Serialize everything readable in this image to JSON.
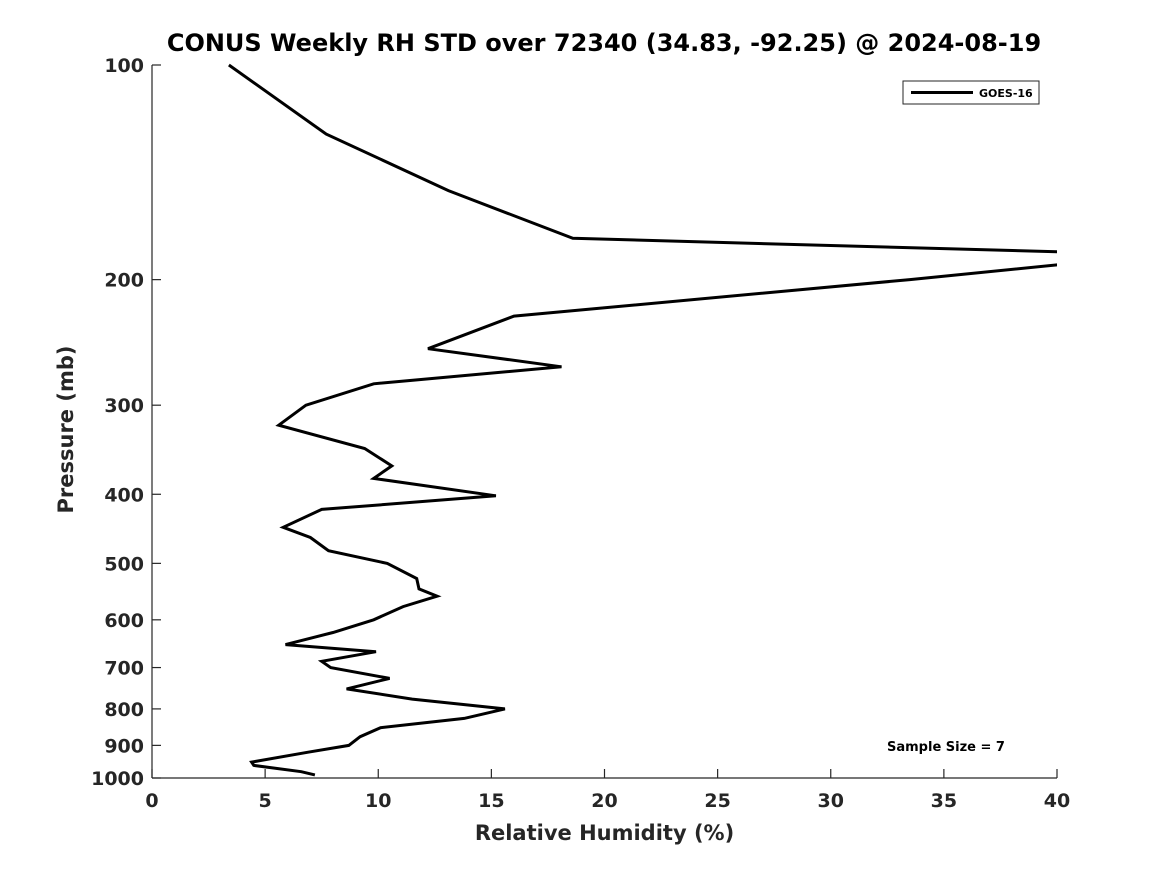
{
  "chart_data": {
    "type": "line",
    "title": "CONUS Weekly RH STD over 72340 (34.83, -92.25) @ 2024-08-19",
    "xlabel": "Relative Humidity (%)",
    "ylabel": "Pressure (mb)",
    "xlim": [
      0,
      40
    ],
    "ylim": [
      100,
      1000
    ],
    "y_scale": "log",
    "y_reversed": true,
    "x_ticks": [
      0,
      5,
      10,
      15,
      20,
      25,
      30,
      35,
      40
    ],
    "y_ticks": [
      100,
      200,
      300,
      400,
      500,
      600,
      700,
      800,
      900,
      1000
    ],
    "grid": false,
    "legend_position": "top-right",
    "annotation": "Sample Size = 7",
    "series": [
      {
        "name": "GOES-16",
        "color": "#000000",
        "points": [
          [
            3.4,
            100
          ],
          [
            7.7,
            125
          ],
          [
            13.1,
            150
          ],
          [
            18.6,
            175
          ],
          [
            40.5,
            183
          ],
          [
            40.5,
            190
          ],
          [
            33.5,
            200
          ],
          [
            16.0,
            225
          ],
          [
            12.2,
            250
          ],
          [
            18.1,
            265
          ],
          [
            9.8,
            280
          ],
          [
            6.8,
            300
          ],
          [
            5.6,
            320
          ],
          [
            9.4,
            345
          ],
          [
            10.6,
            365
          ],
          [
            9.8,
            380
          ],
          [
            15.2,
            402
          ],
          [
            7.5,
            420
          ],
          [
            5.8,
            445
          ],
          [
            7.0,
            460
          ],
          [
            7.8,
            480
          ],
          [
            10.4,
            500
          ],
          [
            11.7,
            525
          ],
          [
            11.8,
            543
          ],
          [
            12.6,
            556
          ],
          [
            11.1,
            575
          ],
          [
            9.8,
            600
          ],
          [
            8.0,
            625
          ],
          [
            5.9,
            650
          ],
          [
            9.9,
            665
          ],
          [
            7.5,
            686
          ],
          [
            7.9,
            700
          ],
          [
            10.5,
            725
          ],
          [
            8.6,
            750
          ],
          [
            11.5,
            775
          ],
          [
            15.6,
            800
          ],
          [
            13.8,
            825
          ],
          [
            10.1,
            850
          ],
          [
            9.2,
            875
          ],
          [
            8.7,
            900
          ],
          [
            6.9,
            920
          ],
          [
            4.4,
            950
          ],
          [
            4.5,
            960
          ],
          [
            6.6,
            980
          ],
          [
            7.2,
            990
          ]
        ]
      }
    ]
  }
}
